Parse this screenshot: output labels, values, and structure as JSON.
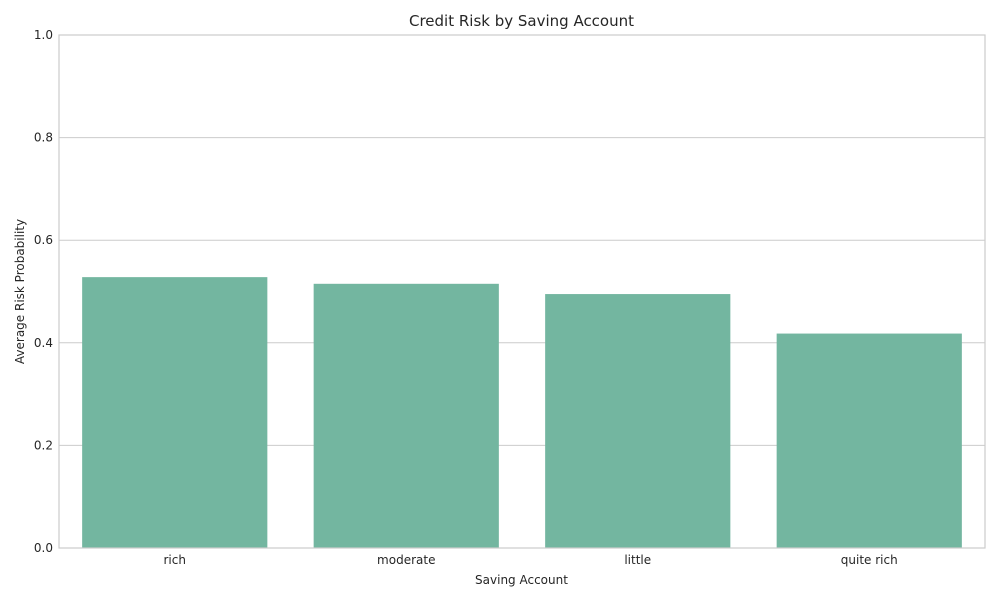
{
  "chart_data": {
    "type": "bar",
    "title": "Credit Risk by Saving Account",
    "xlabel": "Saving Account",
    "ylabel": "Average Risk Probability",
    "categories": [
      "rich",
      "moderate",
      "little",
      "quite rich"
    ],
    "values": [
      0.528,
      0.515,
      0.495,
      0.418
    ],
    "ylim": [
      0,
      1.0
    ],
    "yticks": [
      0.0,
      0.2,
      0.4,
      0.6,
      0.8,
      1.0
    ],
    "ytick_labels": [
      "0.0",
      "0.2",
      "0.4",
      "0.6",
      "0.8",
      "1.0"
    ],
    "bar_color": "#73b6a0",
    "grid": true,
    "grid_axis": "y"
  }
}
